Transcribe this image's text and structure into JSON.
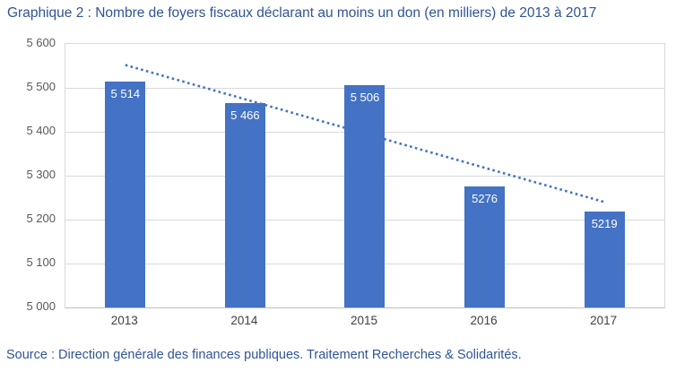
{
  "title": "Graphique 2 : Nombre de foyers fiscaux déclarant au moins un don (en milliers) de 2013 à 2017",
  "source": "Source : Direction générale des finances publiques. Traitement Recherches & Solidarités.",
  "colors": {
    "bar": "#4472C4",
    "trendline": "#4472C4",
    "title_text": "#2F5496",
    "source_text": "#2F5496",
    "axis_text": "#595959",
    "gridline": "#D9D9D9",
    "axis_line": "#BFBFBF"
  },
  "chart_data": {
    "type": "bar",
    "title": "Graphique 2 : Nombre de foyers fiscaux déclarant au moins un don (en milliers) de 2013 à 2017",
    "categories": [
      "2013",
      "2014",
      "2015",
      "2016",
      "2017"
    ],
    "values": [
      5514,
      5466,
      5506,
      5276,
      5219
    ],
    "bar_labels": [
      "5 514",
      "5 466",
      "5 506",
      "5276",
      "5219"
    ],
    "xlabel": "",
    "ylabel": "",
    "ylim": [
      5000,
      5600
    ],
    "ytick_interval": 100,
    "ytick_labels": [
      "5 000",
      "5 100",
      "5 200",
      "5 300",
      "5 400",
      "5 500",
      "5 600"
    ],
    "grid": true,
    "legend_position": "none",
    "trendline": {
      "type": "linear",
      "style": "dotted",
      "start_value": 5552,
      "end_value": 5240
    }
  }
}
